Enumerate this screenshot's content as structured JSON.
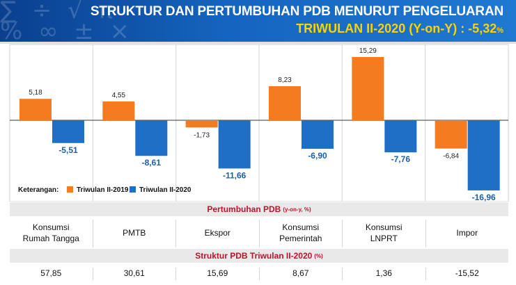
{
  "header": {
    "title": "STRUKTUR DAN PERTUMBUHAN PDB MENURUT PENGELUARAN",
    "subtitle_main": "TRIWULAN II-2020 (Y-on-Y) : -5,32",
    "subtitle_pct": "%"
  },
  "colors": {
    "series_2019": "#f47b20",
    "series_2020": "#1e6fc5",
    "band_text": "#c0112b"
  },
  "chart_data": {
    "type": "bar",
    "categories": [
      "Konsumsi Rumah Tangga",
      "PMTB",
      "Ekspor",
      "Konsumsi Pemerintah",
      "Konsumsi LNPRT",
      "Impor"
    ],
    "series": [
      {
        "name": "Triwulan II-2019",
        "values": [
          5.18,
          4.55,
          -1.73,
          8.23,
          15.29,
          -6.84
        ],
        "labels": [
          "5,18",
          "4,55",
          "-1,73",
          "8,23",
          "15,29",
          "-6,84"
        ]
      },
      {
        "name": "Triwulan II-2020",
        "values": [
          -5.51,
          -8.61,
          -11.66,
          -6.9,
          -7.76,
          -16.96
        ],
        "labels": [
          "-5,51",
          "-8,61",
          "-11,66",
          "-6,90",
          "-7,76",
          "-16,96"
        ]
      }
    ],
    "ylim": [
      -18,
      16
    ],
    "grid": false,
    "legend_label": "Keterangan:",
    "legend_placement": "bottom-left"
  },
  "table": {
    "growth_title": "Pertumbuhan PDB",
    "growth_unit": "(y-on-y, %)",
    "categories": [
      {
        "line1": "Konsumsi",
        "line2": "Rumah Tangga"
      },
      {
        "line1": "PMTB",
        "line2": ""
      },
      {
        "line1": "Ekspor",
        "line2": ""
      },
      {
        "line1": "Konsumsi",
        "line2": "Pemerintah"
      },
      {
        "line1": "Konsumsi",
        "line2": "LNPRT"
      },
      {
        "line1": "Impor",
        "line2": ""
      }
    ],
    "structure_title": "Struktur PDB Triwulan II-2020",
    "structure_unit": "(%)",
    "structure_values": [
      "57,85",
      "30,61",
      "15,69",
      "8,67",
      "1,36",
      "-15,52"
    ]
  }
}
